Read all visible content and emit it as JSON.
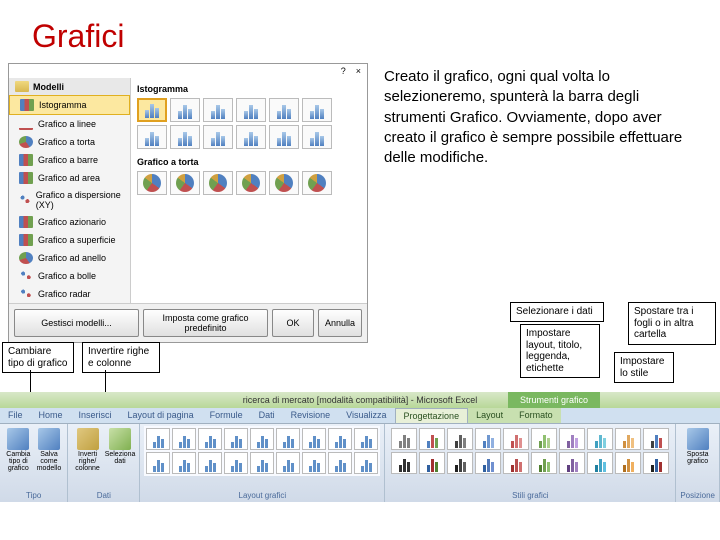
{
  "title": "Grafici",
  "dialog": {
    "help": "?",
    "close": "×",
    "sidebar": {
      "group": "Modelli",
      "items": [
        {
          "label": "Istogramma",
          "selected": true
        },
        {
          "label": "Grafico a linee"
        },
        {
          "label": "Grafico a torta"
        },
        {
          "label": "Grafico a barre"
        },
        {
          "label": "Grafico ad area"
        },
        {
          "label": "Grafico a dispersione (XY)"
        },
        {
          "label": "Grafico azionario"
        },
        {
          "label": "Grafico a superficie"
        },
        {
          "label": "Grafico ad anello"
        },
        {
          "label": "Grafico a bolle"
        },
        {
          "label": "Grafico radar"
        }
      ]
    },
    "sections": [
      {
        "title": "Istogramma",
        "count": 12,
        "selected": 0
      },
      {
        "title": "Grafico a torta",
        "count": 6,
        "pie": true
      }
    ],
    "buttons": {
      "manage": "Gestisci modelli...",
      "setDefault": "Imposta come grafico predefinito",
      "ok": "OK",
      "cancel": "Annulla"
    }
  },
  "explanation": "Creato il grafico, ogni qual volta lo selezioneremo, spunterà la barra degli strumenti Grafico. Ovviamente, dopo aver creato il grafico è sempre possibile effettuare delle modifiche.",
  "callouts": {
    "changeType": "Cambiare tipo di grafico",
    "invertRows": "Invertire righe e colonne",
    "selectData": "Selezionare i dati",
    "setLayout": "Impostare layout, titolo, leggenda, etichette",
    "moveSheets": "Spostare tra i fogli o in altra cartella",
    "setStyle": "Impostare lo stile"
  },
  "ribbon": {
    "appTitle": "ricerca di mercato [modalità compatibilità] - Microsoft Excel",
    "toolTitle": "Strumenti grafico",
    "tabs": [
      "File",
      "Home",
      "Inserisci",
      "Layout di pagina",
      "Formule",
      "Dati",
      "Revisione",
      "Visualizza"
    ],
    "chartTabs": [
      "Progettazione",
      "Layout",
      "Formato"
    ],
    "groups": {
      "type": {
        "label": "Tipo",
        "btns": [
          {
            "label": "Cambia tipo di grafico"
          },
          {
            "label": "Salva come modello"
          }
        ]
      },
      "data": {
        "label": "Dati",
        "btns": [
          {
            "label": "Inverti righe/ colonne"
          },
          {
            "label": "Seleziona dati"
          }
        ]
      },
      "layouts": {
        "label": "Layout grafici"
      },
      "styles": {
        "label": "Stili grafici"
      },
      "location": {
        "label": "Posizione",
        "btn": "Sposta grafico"
      }
    },
    "styleColors": [
      [
        "#808080",
        "#808080",
        "#808080"
      ],
      [
        "#5080c0",
        "#c05050",
        "#70a050"
      ],
      [
        "#404040",
        "#606060",
        "#808080"
      ],
      [
        "#5080c0",
        "#7098d0",
        "#90b0e0"
      ],
      [
        "#c05050",
        "#d07070",
        "#e09090"
      ],
      [
        "#70a050",
        "#90c070",
        "#b0d090"
      ],
      [
        "#8060a0",
        "#a080c0",
        "#c0a0e0"
      ],
      [
        "#40a0c0",
        "#60b8d0",
        "#80d0e0"
      ],
      [
        "#d09040",
        "#e0a860",
        "#f0c080"
      ],
      [
        "#404040",
        "#5080c0",
        "#c05050"
      ],
      [
        "#303030",
        "#303030",
        "#303030"
      ],
      [
        "#3060a0",
        "#a03030",
        "#508030"
      ],
      [
        "#202020",
        "#404040",
        "#606060"
      ],
      [
        "#3060a0",
        "#5078b8",
        "#7090d0"
      ],
      [
        "#a03030",
        "#b85050",
        "#d07070"
      ],
      [
        "#508030",
        "#70a050",
        "#90c070"
      ],
      [
        "#604080",
        "#8060a0",
        "#a080c0"
      ],
      [
        "#2080a0",
        "#40a0c0",
        "#60c0e0"
      ],
      [
        "#b07020",
        "#d09040",
        "#f0b060"
      ],
      [
        "#202020",
        "#3060a0",
        "#a03030"
      ]
    ]
  }
}
